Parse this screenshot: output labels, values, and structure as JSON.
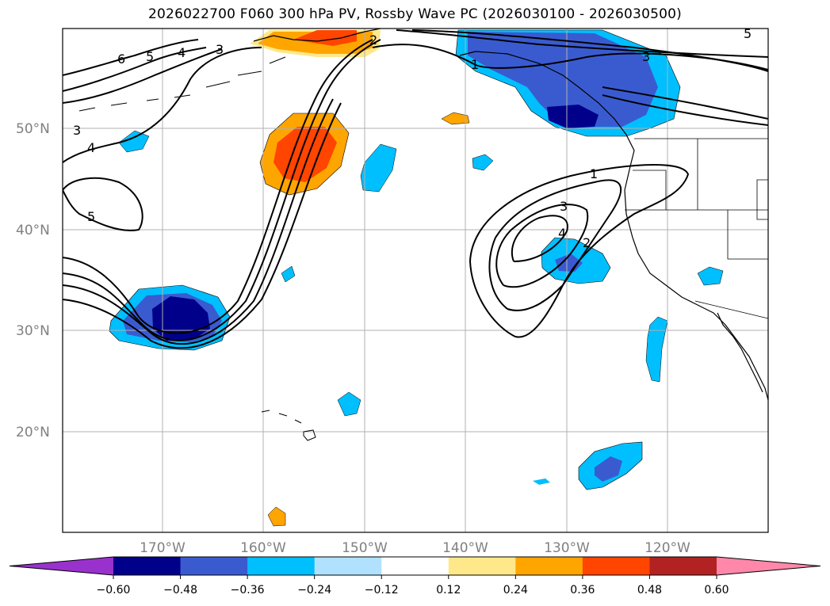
{
  "title": "2026022700 F060 300 hPa PV, Rossby Wave PC (2026030100 - 2026030500)",
  "lat_labels": [
    "50°N",
    "40°N",
    "30°N",
    "20°N"
  ],
  "lon_labels": [
    "170°W",
    "160°W",
    "150°W",
    "140°W",
    "130°W",
    "120°W"
  ],
  "colorbar": {
    "ticks": [
      "−0.60",
      "−0.48",
      "−0.36",
      "−0.24",
      "−0.12",
      "0.12",
      "0.24",
      "0.36",
      "0.48",
      "0.60"
    ],
    "colors": [
      "#9932cc",
      "#00008b",
      "#3a5bd0",
      "#00bfff",
      "#b0e2ff",
      "#ffffff",
      "#ffe88a",
      "#ffa500",
      "#ff4500",
      "#b22222",
      "#ff88aa"
    ]
  },
  "contour_labels": [
    "6",
    "5",
    "4",
    "3",
    "2",
    "1",
    "3",
    "4",
    "5",
    "3",
    "1",
    "3",
    "2",
    "4",
    "5"
  ]
}
